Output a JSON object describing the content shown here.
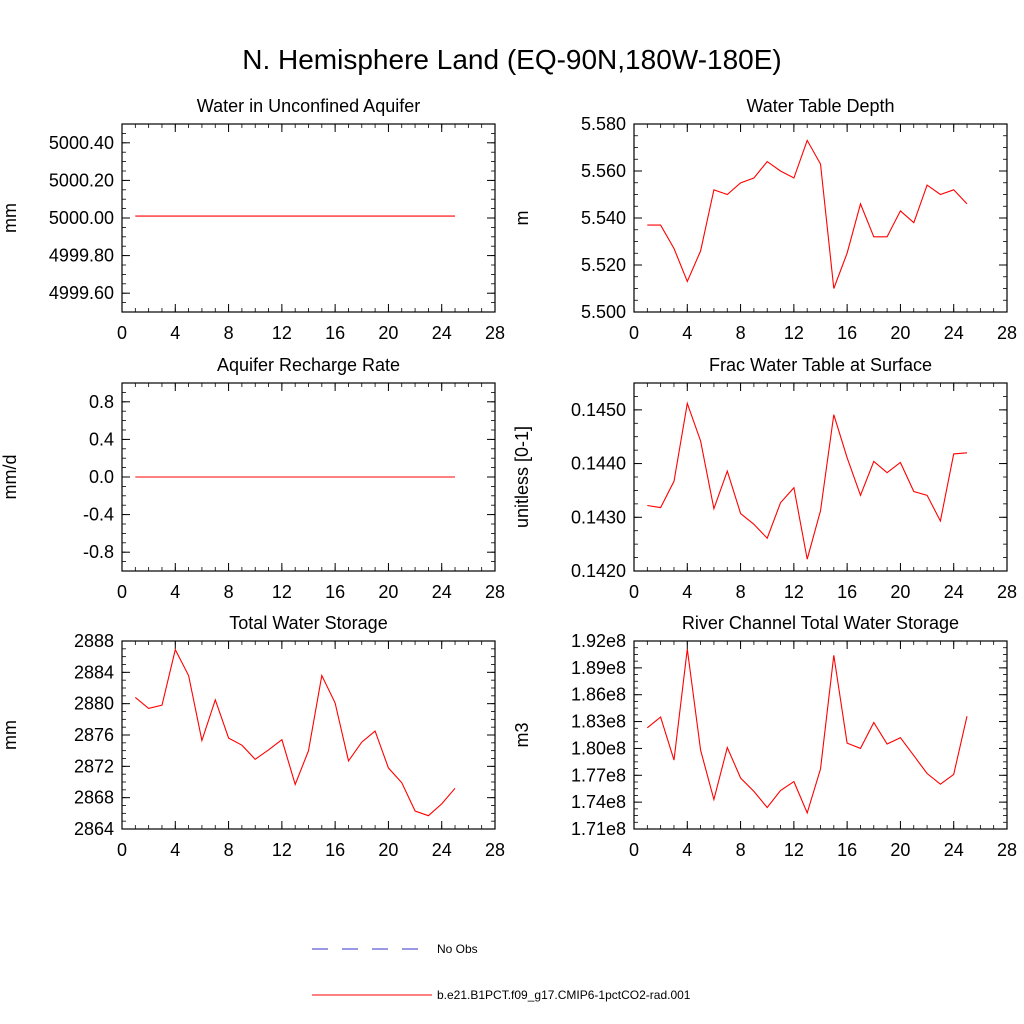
{
  "figure": {
    "title": "N. Hemisphere Land (EQ-90N,180W-180E)"
  },
  "colors": {
    "model_line": "#ff0000",
    "obs_line": "#3333cc",
    "axis": "#000000"
  },
  "chart_data": [
    {
      "type": "line",
      "title": "Water in Unconfined Aquifer",
      "ylabel": "mm",
      "xlabel": "",
      "xlim": [
        0,
        28
      ],
      "ylim": [
        4999.5,
        5000.5
      ],
      "xticks": [
        0,
        4,
        8,
        12,
        16,
        20,
        24,
        28
      ],
      "yticks": [
        4999.6,
        4999.8,
        5000.0,
        5000.2,
        5000.4
      ],
      "ytick_labels": [
        "4999.60",
        "4999.80",
        "5000.00",
        "5000.20",
        "5000.40"
      ],
      "x": [
        1,
        25
      ],
      "series": [
        {
          "values": [
            5000.01,
            5000.01
          ]
        }
      ]
    },
    {
      "type": "line",
      "title": "Water Table Depth",
      "ylabel": "m",
      "xlabel": "",
      "xlim": [
        0,
        28
      ],
      "ylim": [
        5.5,
        5.58
      ],
      "xticks": [
        0,
        4,
        8,
        12,
        16,
        20,
        24,
        28
      ],
      "yticks": [
        5.5,
        5.52,
        5.54,
        5.56,
        5.58
      ],
      "ytick_labels": [
        "5.500",
        "5.520",
        "5.540",
        "5.560",
        "5.580"
      ],
      "x": [
        1,
        2,
        3,
        4,
        5,
        6,
        7,
        8,
        9,
        10,
        11,
        12,
        13,
        14,
        15,
        16,
        17,
        18,
        19,
        20,
        21,
        22,
        23,
        24,
        25
      ],
      "series": [
        {
          "values": [
            5.537,
            5.537,
            5.527,
            5.513,
            5.526,
            5.552,
            5.55,
            5.555,
            5.557,
            5.564,
            5.56,
            5.557,
            5.573,
            5.563,
            5.51,
            5.525,
            5.546,
            5.532,
            5.532,
            5.543,
            5.538,
            5.554,
            5.55,
            5.552,
            5.546
          ]
        }
      ]
    },
    {
      "type": "line",
      "title": "Aquifer Recharge Rate",
      "ylabel": "mm/d",
      "xlabel": "",
      "xlim": [
        0,
        28
      ],
      "ylim": [
        -1.0,
        1.0
      ],
      "xticks": [
        0,
        4,
        8,
        12,
        16,
        20,
        24,
        28
      ],
      "yticks": [
        -0.8,
        -0.4,
        0.0,
        0.4,
        0.8
      ],
      "ytick_labels": [
        "-0.8",
        "-0.4",
        "0.0",
        "0.4",
        "0.8"
      ],
      "x": [
        1,
        25
      ],
      "series": [
        {
          "values": [
            0.0,
            0.0
          ]
        }
      ]
    },
    {
      "type": "line",
      "title": "Frac Water Table at Surface",
      "ylabel": "unitless [0-1]",
      "xlabel": "",
      "xlim": [
        0,
        28
      ],
      "ylim": [
        0.142,
        0.1455
      ],
      "xticks": [
        0,
        4,
        8,
        12,
        16,
        20,
        24,
        28
      ],
      "yticks": [
        0.142,
        0.143,
        0.144,
        0.145
      ],
      "ytick_labels": [
        "0.1420",
        "0.1430",
        "0.1440",
        "0.1450"
      ],
      "x": [
        1,
        2,
        3,
        4,
        5,
        6,
        7,
        8,
        9,
        10,
        11,
        12,
        13,
        14,
        15,
        16,
        17,
        18,
        19,
        20,
        21,
        22,
        23,
        24,
        25
      ],
      "series": [
        {
          "values": [
            0.14322,
            0.14318,
            0.14367,
            0.14512,
            0.14442,
            0.14316,
            0.14386,
            0.14307,
            0.14287,
            0.14261,
            0.14327,
            0.14355,
            0.14222,
            0.14312,
            0.14491,
            0.14411,
            0.14341,
            0.14404,
            0.14383,
            0.14402,
            0.14348,
            0.14341,
            0.14293,
            0.14418,
            0.1442
          ]
        }
      ]
    },
    {
      "type": "line",
      "title": "Total Water Storage",
      "ylabel": "mm",
      "xlabel": "",
      "xlim": [
        0,
        28
      ],
      "ylim": [
        2864,
        2888
      ],
      "xticks": [
        0,
        4,
        8,
        12,
        16,
        20,
        24,
        28
      ],
      "yticks": [
        2864,
        2868,
        2872,
        2876,
        2880,
        2884,
        2888
      ],
      "ytick_labels": [
        "2864",
        "2868",
        "2872",
        "2876",
        "2880",
        "2884",
        "2888"
      ],
      "x": [
        1,
        2,
        3,
        4,
        5,
        6,
        7,
        8,
        9,
        10,
        11,
        12,
        13,
        14,
        15,
        16,
        17,
        18,
        19,
        20,
        21,
        22,
        23,
        24,
        25
      ],
      "series": [
        {
          "values": [
            2880.8,
            2879.4,
            2879.8,
            2886.9,
            2883.6,
            2875.3,
            2880.5,
            2875.6,
            2874.7,
            2872.9,
            2874.1,
            2875.4,
            2869.7,
            2874.0,
            2883.6,
            2880.1,
            2872.7,
            2875.1,
            2876.5,
            2871.8,
            2869.9,
            2866.3,
            2865.7,
            2867.2,
            2869.2
          ]
        }
      ]
    },
    {
      "type": "line",
      "title": "River Channel Total Water Storage",
      "ylabel": "m3",
      "xlabel": "",
      "xlim": [
        0,
        28
      ],
      "ylim": [
        171000000.0,
        192000000.0
      ],
      "xticks": [
        0,
        4,
        8,
        12,
        16,
        20,
        24,
        28
      ],
      "yticks": [
        171000000.0,
        174000000.0,
        177000000.0,
        180000000.0,
        183000000.0,
        186000000.0,
        189000000.0,
        192000000.0
      ],
      "ytick_labels": [
        "1.71e8",
        "1.74e8",
        "1.77e8",
        "1.80e8",
        "1.83e8",
        "1.86e8",
        "1.89e8",
        "1.92e8"
      ],
      "x": [
        1,
        2,
        3,
        4,
        5,
        6,
        7,
        8,
        9,
        10,
        11,
        12,
        13,
        14,
        15,
        16,
        17,
        18,
        19,
        20,
        21,
        22,
        23,
        24,
        25
      ],
      "series": [
        {
          "values": [
            182300000.0,
            183500000.0,
            178700000.0,
            191100000.0,
            179800000.0,
            174300000.0,
            180100000.0,
            176700000.0,
            175200000.0,
            173400000.0,
            175300000.0,
            176300000.0,
            172800000.0,
            177700000.0,
            190400000.0,
            180600000.0,
            180000000.0,
            182900000.0,
            180500000.0,
            181200000.0,
            179200000.0,
            177200000.0,
            176000000.0,
            177100000.0,
            183600000.0
          ]
        }
      ]
    }
  ],
  "legend": {
    "items": [
      {
        "label": "No Obs",
        "style": "dashed",
        "color": "#3333cc"
      },
      {
        "label": "b.e21.B1PCT.f09_g17.CMIP6-1pctCO2-rad.001",
        "style": "solid",
        "color": "#ff0000"
      }
    ]
  }
}
